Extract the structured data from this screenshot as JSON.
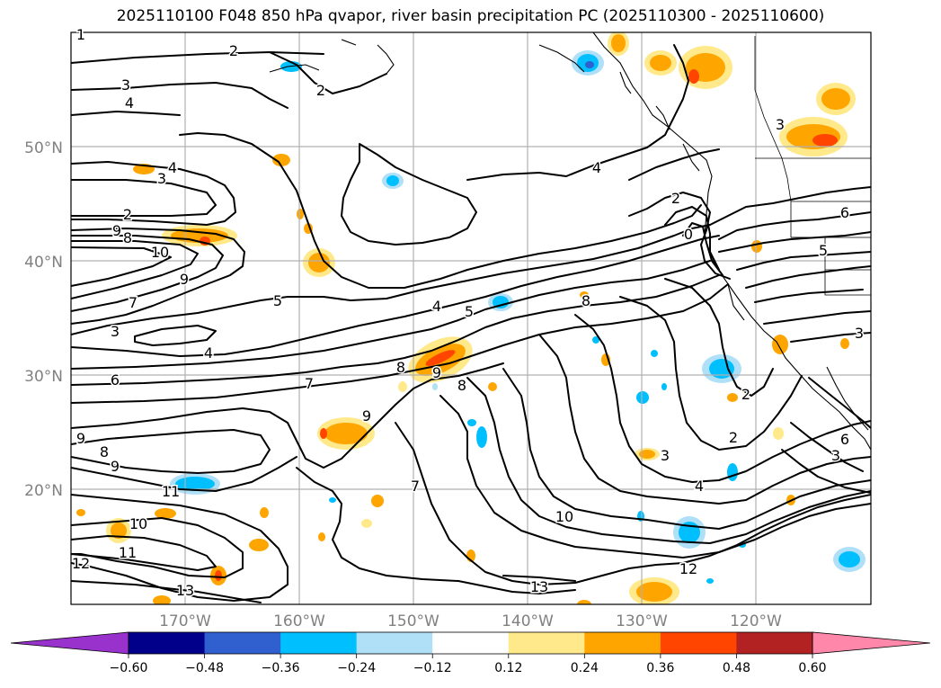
{
  "title": "2025110100 F048 850 hPa qvapor, river basin precipitation PC (2025110300 - 2025110600)",
  "lat_labels": [
    "50°N",
    "40°N",
    "30°N",
    "20°N"
  ],
  "lon_labels": [
    "170°W",
    "160°W",
    "150°W",
    "140°W",
    "130°W",
    "120°W"
  ],
  "contour_labels": [
    "1",
    "2",
    "2",
    "3",
    "4",
    "3",
    "4",
    "3",
    "2",
    "9",
    "8",
    "10",
    "9",
    "7",
    "5",
    "3",
    "4",
    "6",
    "7",
    "4",
    "5",
    "8",
    "9",
    "8",
    "4",
    "2",
    "0",
    "6",
    "8",
    "3",
    "2",
    "9",
    "9",
    "8",
    "9",
    "11",
    "10",
    "7",
    "3",
    "2",
    "4",
    "10",
    "11",
    "12",
    "13",
    "12",
    "13",
    "6",
    "3",
    "5"
  ],
  "colorbar": {
    "ticks": [
      "−0.60",
      "−0.48",
      "−0.36",
      "−0.24",
      "−0.12",
      "0.12",
      "0.24",
      "0.36",
      "0.48",
      "0.60"
    ],
    "colors": [
      "#9932cc",
      "#00008b",
      "#3060d0",
      "#00bfff",
      "#b0e0f8",
      "#ffffff",
      "#ffe98a",
      "#ffa500",
      "#ff4500",
      "#b22222",
      "#ff88aa"
    ]
  }
}
